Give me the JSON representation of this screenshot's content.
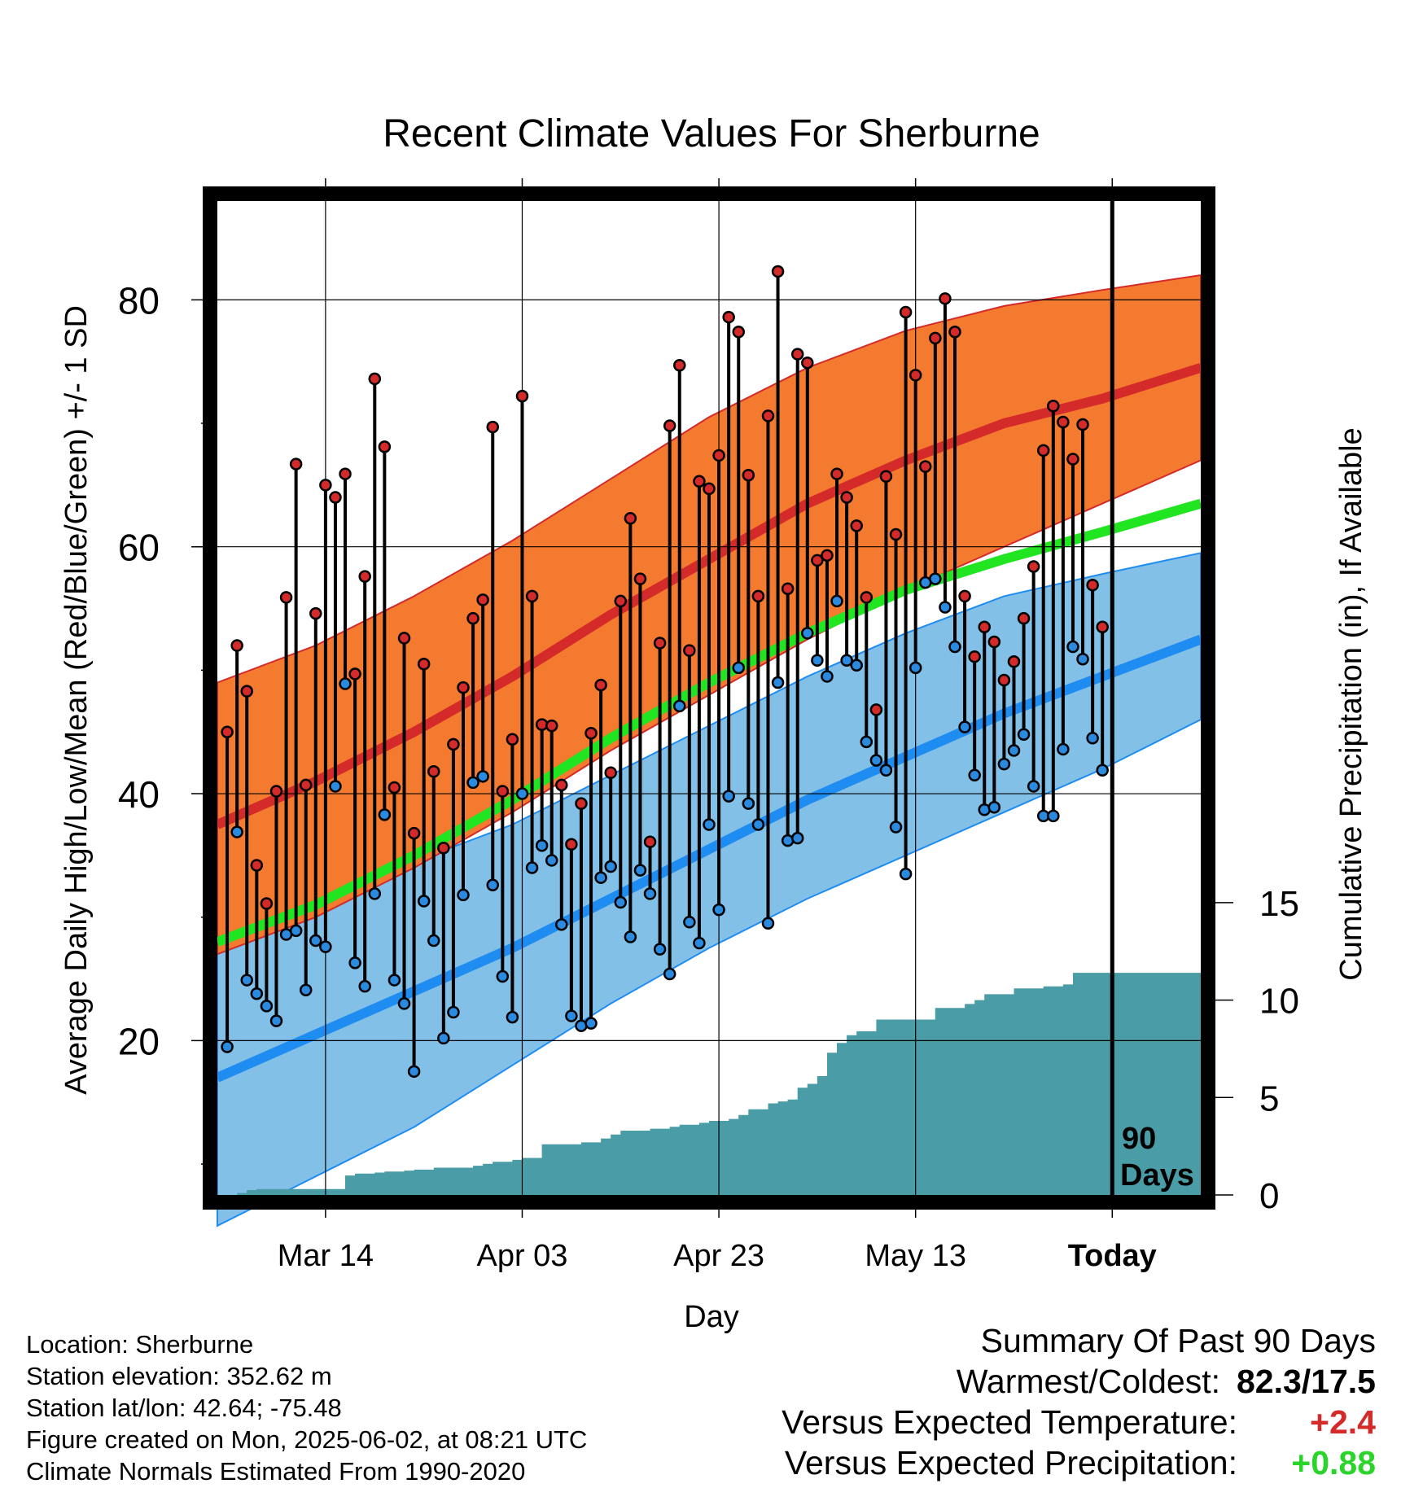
{
  "title": "Recent Climate Values For Sherburne",
  "ylabel_left": "Average Daily High/Low/Mean (Red/Blue/Green) +/- 1 SD",
  "ylabel_right": "Cumulative Precipitation (in), If Available",
  "xlabel": "Day",
  "today_marker": {
    "label_line1": "90",
    "label_line2": "Days"
  },
  "footer": {
    "location": "Location: Sherburne",
    "elevation": "Station elevation: 352.62 m",
    "latlon": "Station lat/lon: 42.64; -75.48",
    "created": "Figure created on Mon, 2025-06-02, at 08:21 UTC",
    "normals": "Climate Normals Estimated From 1990-2020"
  },
  "summary": {
    "heading": "Summary Of Past 90 Days",
    "warm_cold_label": "Warmest/Coldest:",
    "warm_cold_value": "82.3/17.5",
    "temp_label": "Versus Expected Temperature:",
    "temp_value": "+2.4",
    "precip_label": "Versus Expected Precipitation:",
    "precip_value": "+0.88"
  },
  "colors": {
    "high_band": "#f47a30",
    "high_mean": "#d42a2a",
    "low_band": "#82c0e8",
    "low_mean": "#1e8cf0",
    "mean_line": "#22e522",
    "precip_fill": "#4a9ca6",
    "high_dot": "#d42a2a",
    "low_dot": "#2a8ae0"
  },
  "chart_data": {
    "type": "line",
    "x_ticks": [
      {
        "label": "Mar 14",
        "day": 11
      },
      {
        "label": "Apr 03",
        "day": 31
      },
      {
        "label": "Apr 23",
        "day": 51
      },
      {
        "label": "May 13",
        "day": 71
      },
      {
        "label": "Today",
        "day": 91
      }
    ],
    "xlim": [
      0,
      100
    ],
    "ylim_left": [
      7.5,
      88
    ],
    "yticks_left": [
      20,
      40,
      60,
      80
    ],
    "ylim_right": [
      0,
      51
    ],
    "yticks_right": [
      0,
      5,
      10,
      15
    ],
    "grid": true,
    "normals_days": [
      0,
      10,
      20,
      30,
      40,
      50,
      60,
      70,
      80,
      90,
      100
    ],
    "normal_high": [
      37.5,
      41,
      45,
      49.5,
      54.5,
      59,
      63.5,
      67,
      70,
      72,
      74.5
    ],
    "high_sd_upper": [
      49,
      52,
      56,
      60.5,
      65.5,
      70.5,
      74.5,
      77.5,
      79.5,
      80.8,
      82
    ],
    "high_sd_lower": [
      27,
      30,
      34,
      38.5,
      43.5,
      48,
      52.5,
      56.5,
      60,
      63.5,
      67
    ],
    "normal_mean": [
      28,
      31,
      35,
      39.5,
      44.5,
      49,
      53,
      56.5,
      59,
      61.2,
      63.5
    ],
    "normal_low": [
      17,
      20.5,
      24,
      27.5,
      31.5,
      35.5,
      39.5,
      43,
      46.5,
      49.5,
      52.5
    ],
    "low_sd_upper": [
      29,
      31.5,
      34.5,
      37.5,
      41.5,
      45.5,
      49.5,
      53,
      56,
      57.8,
      59.5
    ],
    "low_sd_lower": [
      5,
      9,
      13,
      18,
      23,
      27.5,
      31.5,
      35,
      38.5,
      42,
      46
    ],
    "highs": [
      45.0,
      52.0,
      48.3,
      34.2,
      31.1,
      40.2,
      55.9,
      66.7,
      40.7,
      54.6,
      65.0,
      64.0,
      65.9,
      49.7,
      57.6,
      73.6,
      68.1,
      40.5,
      52.6,
      36.8,
      50.5,
      41.8,
      35.6,
      44.0,
      48.6,
      54.2,
      55.7,
      69.7,
      40.2,
      44.4,
      72.2,
      56.0,
      45.6,
      45.5,
      40.7,
      35.9,
      39.2,
      44.9,
      48.8,
      41.7,
      55.6,
      62.3,
      57.4,
      36.1,
      52.2,
      69.8,
      74.7,
      51.6,
      65.3,
      64.7,
      67.4,
      78.6,
      77.4,
      65.8,
      56.0,
      70.6,
      82.3,
      56.6,
      75.6,
      74.9,
      58.9,
      59.3,
      65.9,
      64.0,
      61.7,
      55.9,
      46.8,
      65.7,
      61.0,
      79.0,
      73.9,
      66.5,
      76.9,
      80.1,
      77.4,
      56.0,
      51.1,
      53.5,
      52.3,
      49.2,
      50.7,
      54.2,
      58.4,
      67.8,
      71.4,
      70.1,
      67.1,
      69.9,
      56.9,
      53.5
    ],
    "lows": [
      19.5,
      36.9,
      24.9,
      23.8,
      22.8,
      21.6,
      28.6,
      28.9,
      24.1,
      28.1,
      27.6,
      40.6,
      48.9,
      26.3,
      24.4,
      31.9,
      38.3,
      24.9,
      23.0,
      17.5,
      31.3,
      28.1,
      20.2,
      22.3,
      31.8,
      40.9,
      41.4,
      32.6,
      25.2,
      21.9,
      40.0,
      34.0,
      35.8,
      34.6,
      29.4,
      22.0,
      21.2,
      21.4,
      33.2,
      34.1,
      31.2,
      28.4,
      33.8,
      31.9,
      27.4,
      25.4,
      47.1,
      29.6,
      27.9,
      37.5,
      30.6,
      39.8,
      50.2,
      39.2,
      37.5,
      29.5,
      49.0,
      36.2,
      36.4,
      53.0,
      50.8,
      49.5,
      55.6,
      50.8,
      50.4,
      44.2,
      42.7,
      41.9,
      37.3,
      33.5,
      50.2,
      57.1,
      57.4,
      55.1,
      51.9,
      45.4,
      41.5,
      38.7,
      38.9,
      42.4,
      43.5,
      44.8,
      40.6,
      38.2,
      38.2,
      43.6,
      51.9,
      50.9,
      44.5,
      41.9
    ],
    "precip_cumulative": [
      0,
      0.1,
      0.25,
      0.3,
      0.3,
      0.3,
      0.3,
      0.3,
      0.3,
      0.3,
      0.3,
      0.3,
      1.0,
      1.1,
      1.1,
      1.15,
      1.2,
      1.2,
      1.25,
      1.3,
      1.3,
      1.4,
      1.4,
      1.4,
      1.4,
      1.5,
      1.6,
      1.7,
      1.7,
      1.8,
      1.9,
      1.9,
      2.6,
      2.6,
      2.6,
      2.6,
      2.7,
      2.7,
      2.9,
      3.1,
      3.3,
      3.3,
      3.3,
      3.4,
      3.4,
      3.5,
      3.6,
      3.6,
      3.7,
      3.8,
      3.8,
      3.9,
      4.1,
      4.4,
      4.4,
      4.7,
      4.8,
      4.9,
      5.5,
      5.7,
      6.1,
      7.3,
      7.8,
      8.2,
      8.4,
      8.4,
      9.0,
      9.0,
      9.0,
      9.0,
      9.0,
      9.0,
      9.6,
      9.6,
      9.6,
      9.8,
      10.0,
      10.3,
      10.3,
      10.3,
      10.6,
      10.6,
      10.6,
      10.7,
      10.7,
      10.8,
      11.4,
      11.4,
      11.4,
      11.4,
      11.4,
      11.4,
      11.4,
      11.4,
      11.4,
      11.4,
      11.4,
      11.4,
      11.4,
      11.4
    ]
  }
}
